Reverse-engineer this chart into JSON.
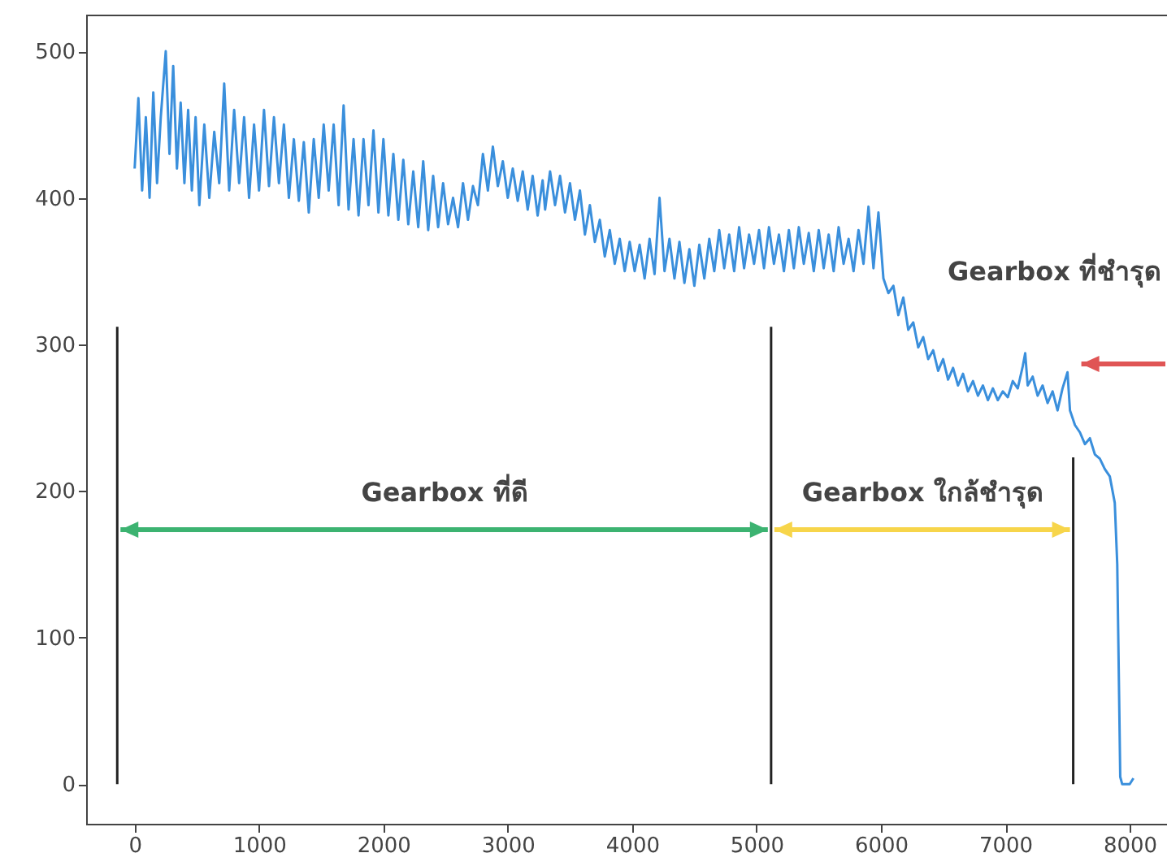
{
  "chart_data": {
    "type": "line",
    "xlim": [
      -390,
      8300
    ],
    "ylim": [
      -27,
      525
    ],
    "xticks": [
      0,
      1000,
      2000,
      3000,
      4000,
      5000,
      6000,
      7000,
      8000
    ],
    "yticks": [
      0,
      100,
      200,
      300,
      400,
      500
    ],
    "grid": false,
    "legend": false,
    "annotations": [
      "Gearbox ที่ดี",
      "Gearbox ใกล้ชำรุด",
      "Gearbox ที่ชำรุด"
    ],
    "series": [
      {
        "color": "#3a8fdc",
        "x": [
          0,
          30,
          60,
          90,
          120,
          150,
          180,
          210,
          250,
          280,
          310,
          340,
          370,
          400,
          430,
          460,
          490,
          520,
          560,
          600,
          640,
          680,
          720,
          760,
          800,
          840,
          880,
          920,
          960,
          1000,
          1040,
          1080,
          1120,
          1160,
          1200,
          1240,
          1280,
          1320,
          1360,
          1400,
          1440,
          1480,
          1520,
          1560,
          1600,
          1640,
          1680,
          1720,
          1760,
          1800,
          1840,
          1880,
          1920,
          1960,
          2000,
          2040,
          2080,
          2120,
          2160,
          2200,
          2240,
          2280,
          2320,
          2360,
          2400,
          2440,
          2480,
          2520,
          2560,
          2600,
          2640,
          2680,
          2720,
          2760,
          2800,
          2840,
          2880,
          2920,
          2960,
          3000,
          3040,
          3080,
          3120,
          3160,
          3200,
          3240,
          3280,
          3300,
          3340,
          3380,
          3420,
          3460,
          3500,
          3540,
          3580,
          3620,
          3660,
          3700,
          3740,
          3780,
          3820,
          3860,
          3900,
          3940,
          3980,
          4020,
          4060,
          4100,
          4140,
          4180,
          4220,
          4260,
          4300,
          4340,
          4380,
          4420,
          4460,
          4500,
          4540,
          4580,
          4620,
          4660,
          4700,
          4740,
          4780,
          4820,
          4860,
          4900,
          4940,
          4980,
          5020,
          5060,
          5100,
          5140,
          5180,
          5220,
          5260,
          5300,
          5340,
          5380,
          5420,
          5460,
          5500,
          5540,
          5580,
          5620,
          5660,
          5700,
          5740,
          5780,
          5820,
          5860,
          5900,
          5940,
          5980,
          6020,
          6060,
          6100,
          6140,
          6180,
          6220,
          6260,
          6300,
          6340,
          6380,
          6420,
          6460,
          6500,
          6540,
          6580,
          6620,
          6660,
          6700,
          6740,
          6780,
          6820,
          6860,
          6900,
          6940,
          6980,
          7020,
          7060,
          7100,
          7140,
          7160,
          7180,
          7220,
          7260,
          7300,
          7340,
          7380,
          7420,
          7460,
          7500,
          7520,
          7560,
          7600,
          7640,
          7680,
          7720,
          7760,
          7800,
          7840,
          7880,
          7900,
          7915,
          7924,
          7940,
          8000,
          8030
        ],
        "values": [
          420,
          468,
          405,
          455,
          400,
          472,
          410,
          455,
          500,
          430,
          490,
          420,
          465,
          410,
          460,
          405,
          455,
          395,
          450,
          400,
          445,
          410,
          478,
          405,
          460,
          410,
          455,
          400,
          450,
          405,
          460,
          408,
          455,
          410,
          450,
          400,
          440,
          398,
          438,
          390,
          440,
          400,
          450,
          405,
          450,
          395,
          463,
          392,
          440,
          388,
          440,
          395,
          446,
          390,
          440,
          388,
          430,
          385,
          426,
          382,
          418,
          380,
          425,
          378,
          415,
          380,
          410,
          382,
          400,
          380,
          410,
          385,
          408,
          395,
          430,
          405,
          435,
          408,
          425,
          400,
          420,
          398,
          418,
          392,
          415,
          388,
          412,
          392,
          418,
          395,
          415,
          390,
          410,
          385,
          405,
          375,
          395,
          370,
          385,
          360,
          378,
          355,
          372,
          350,
          370,
          350,
          368,
          345,
          372,
          348,
          400,
          350,
          372,
          345,
          370,
          342,
          365,
          340,
          368,
          345,
          372,
          350,
          378,
          352,
          375,
          350,
          380,
          352,
          375,
          355,
          378,
          352,
          380,
          355,
          375,
          350,
          378,
          352,
          380,
          355,
          376,
          350,
          378,
          352,
          375,
          350,
          380,
          355,
          372,
          350,
          378,
          355,
          394,
          352,
          390,
          345,
          335,
          340,
          320,
          332,
          310,
          315,
          298,
          305,
          290,
          296,
          282,
          290,
          276,
          284,
          272,
          280,
          268,
          275,
          265,
          272,
          262,
          270,
          262,
          268,
          264,
          275,
          270,
          285,
          294,
          272,
          278,
          265,
          272,
          260,
          268,
          255,
          270,
          281,
          255,
          245,
          240,
          232,
          236,
          225,
          222,
          215,
          210,
          192,
          150,
          60,
          5,
          0,
          0,
          4
        ]
      },
      {
        "color": "#222222",
        "x": [
          -140,
          -140
        ],
        "values": [
          0,
          312
        ]
      },
      {
        "color": "#222222",
        "x": [
          5117,
          5117
        ],
        "values": [
          0,
          312
        ]
      },
      {
        "color": "#222222",
        "x": [
          7546,
          7546
        ],
        "values": [
          0,
          223
        ]
      }
    ]
  }
}
